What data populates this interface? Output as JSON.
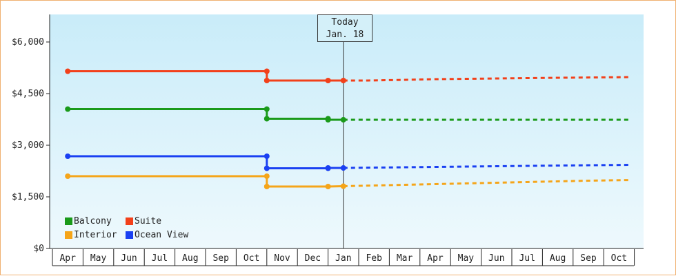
{
  "chart_data": {
    "type": "line",
    "x_labels": [
      "Apr",
      "May",
      "Jun",
      "Jul",
      "Aug",
      "Sep",
      "Oct",
      "Nov",
      "Dec",
      "Jan",
      "Feb",
      "Mar",
      "Apr",
      "May",
      "Jun",
      "Jul",
      "Aug",
      "Sep",
      "Oct"
    ],
    "y_ticks": [
      "$0",
      "$1,500",
      "$3,000",
      "$4,500",
      "$6,000"
    ],
    "ylim": [
      0,
      6800
    ],
    "today": {
      "line1": "Today",
      "line2": "Jan. 18",
      "x": 9.0
    },
    "grid": false,
    "legend_position": "bottom-left",
    "series": [
      {
        "name": "Balcony",
        "color": "#1a9a1a",
        "actual": [
          [
            0,
            4050
          ],
          [
            6.5,
            4050
          ],
          [
            6.5,
            3770
          ],
          [
            8.5,
            3770
          ],
          [
            8.5,
            3740
          ],
          [
            9.0,
            3740
          ]
        ],
        "projected": [
          [
            9.0,
            3740
          ],
          [
            18.4,
            3740
          ]
        ],
        "markers": [
          [
            0,
            4050
          ],
          [
            6.5,
            4050
          ],
          [
            6.5,
            3770
          ],
          [
            8.5,
            3770
          ],
          [
            8.5,
            3740
          ],
          [
            9.0,
            3740
          ]
        ]
      },
      {
        "name": "Suite",
        "color": "#f2401a",
        "actual": [
          [
            0,
            5150
          ],
          [
            6.5,
            5150
          ],
          [
            6.5,
            4880
          ],
          [
            9.0,
            4880
          ]
        ],
        "projected": [
          [
            9.0,
            4880
          ],
          [
            9.8,
            4880
          ],
          [
            11.0,
            4900
          ],
          [
            12.0,
            4920
          ],
          [
            14.0,
            4940
          ],
          [
            16.0,
            4960
          ],
          [
            18.4,
            4980
          ]
        ],
        "markers": [
          [
            0,
            5150
          ],
          [
            6.5,
            5150
          ],
          [
            6.5,
            4880
          ],
          [
            8.5,
            4880
          ],
          [
            9.0,
            4880
          ]
        ]
      },
      {
        "name": "Interior",
        "color": "#f5a51a",
        "actual": [
          [
            0,
            2100
          ],
          [
            6.5,
            2100
          ],
          [
            6.5,
            1800
          ],
          [
            8.5,
            1800
          ],
          [
            9.0,
            1810
          ]
        ],
        "projected": [
          [
            9.0,
            1810
          ],
          [
            10.0,
            1830
          ],
          [
            11.0,
            1850
          ],
          [
            12.0,
            1870
          ],
          [
            13.0,
            1890
          ],
          [
            14.0,
            1910
          ],
          [
            15.0,
            1930
          ],
          [
            16.0,
            1950
          ],
          [
            17.0,
            1970
          ],
          [
            18.4,
            1990
          ]
        ],
        "markers": [
          [
            0,
            2100
          ],
          [
            6.5,
            2100
          ],
          [
            6.5,
            1800
          ],
          [
            8.5,
            1800
          ],
          [
            9.0,
            1810
          ]
        ]
      },
      {
        "name": "Ocean View",
        "color": "#1a40f2",
        "actual": [
          [
            0,
            2680
          ],
          [
            6.5,
            2680
          ],
          [
            6.5,
            2330
          ],
          [
            8.5,
            2330
          ],
          [
            8.5,
            2340
          ],
          [
            9.0,
            2340
          ]
        ],
        "projected": [
          [
            9.0,
            2340
          ],
          [
            10.0,
            2350
          ],
          [
            12.0,
            2370
          ],
          [
            14.0,
            2390
          ],
          [
            16.0,
            2410
          ],
          [
            18.4,
            2430
          ]
        ],
        "markers": [
          [
            0,
            2680
          ],
          [
            6.5,
            2680
          ],
          [
            6.5,
            2330
          ],
          [
            8.5,
            2330
          ],
          [
            8.5,
            2340
          ],
          [
            9.0,
            2340
          ]
        ]
      }
    ],
    "legend_order": [
      "Balcony",
      "Suite",
      "Interior",
      "Ocean View"
    ]
  }
}
